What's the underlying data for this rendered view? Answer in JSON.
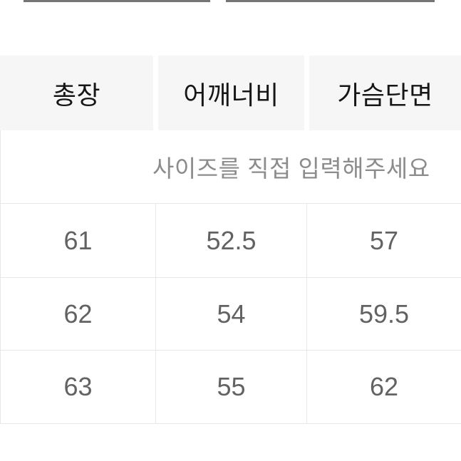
{
  "size_table": {
    "columns": [
      "총장",
      "어깨너비",
      "가슴단면"
    ],
    "notice_text": "사이즈를 직접 입력해주세요",
    "rows": [
      [
        "61",
        "52.5",
        "57"
      ],
      [
        "62",
        "54",
        "59.5"
      ],
      [
        "63",
        "55",
        "62"
      ]
    ]
  },
  "colors": {
    "header_bg": "#f6f6f6",
    "header_text": "#161616",
    "value_text": "#626262",
    "notice_text": "#8c8c8c",
    "border": "#e7e7e7",
    "top_divider": "#757575"
  }
}
